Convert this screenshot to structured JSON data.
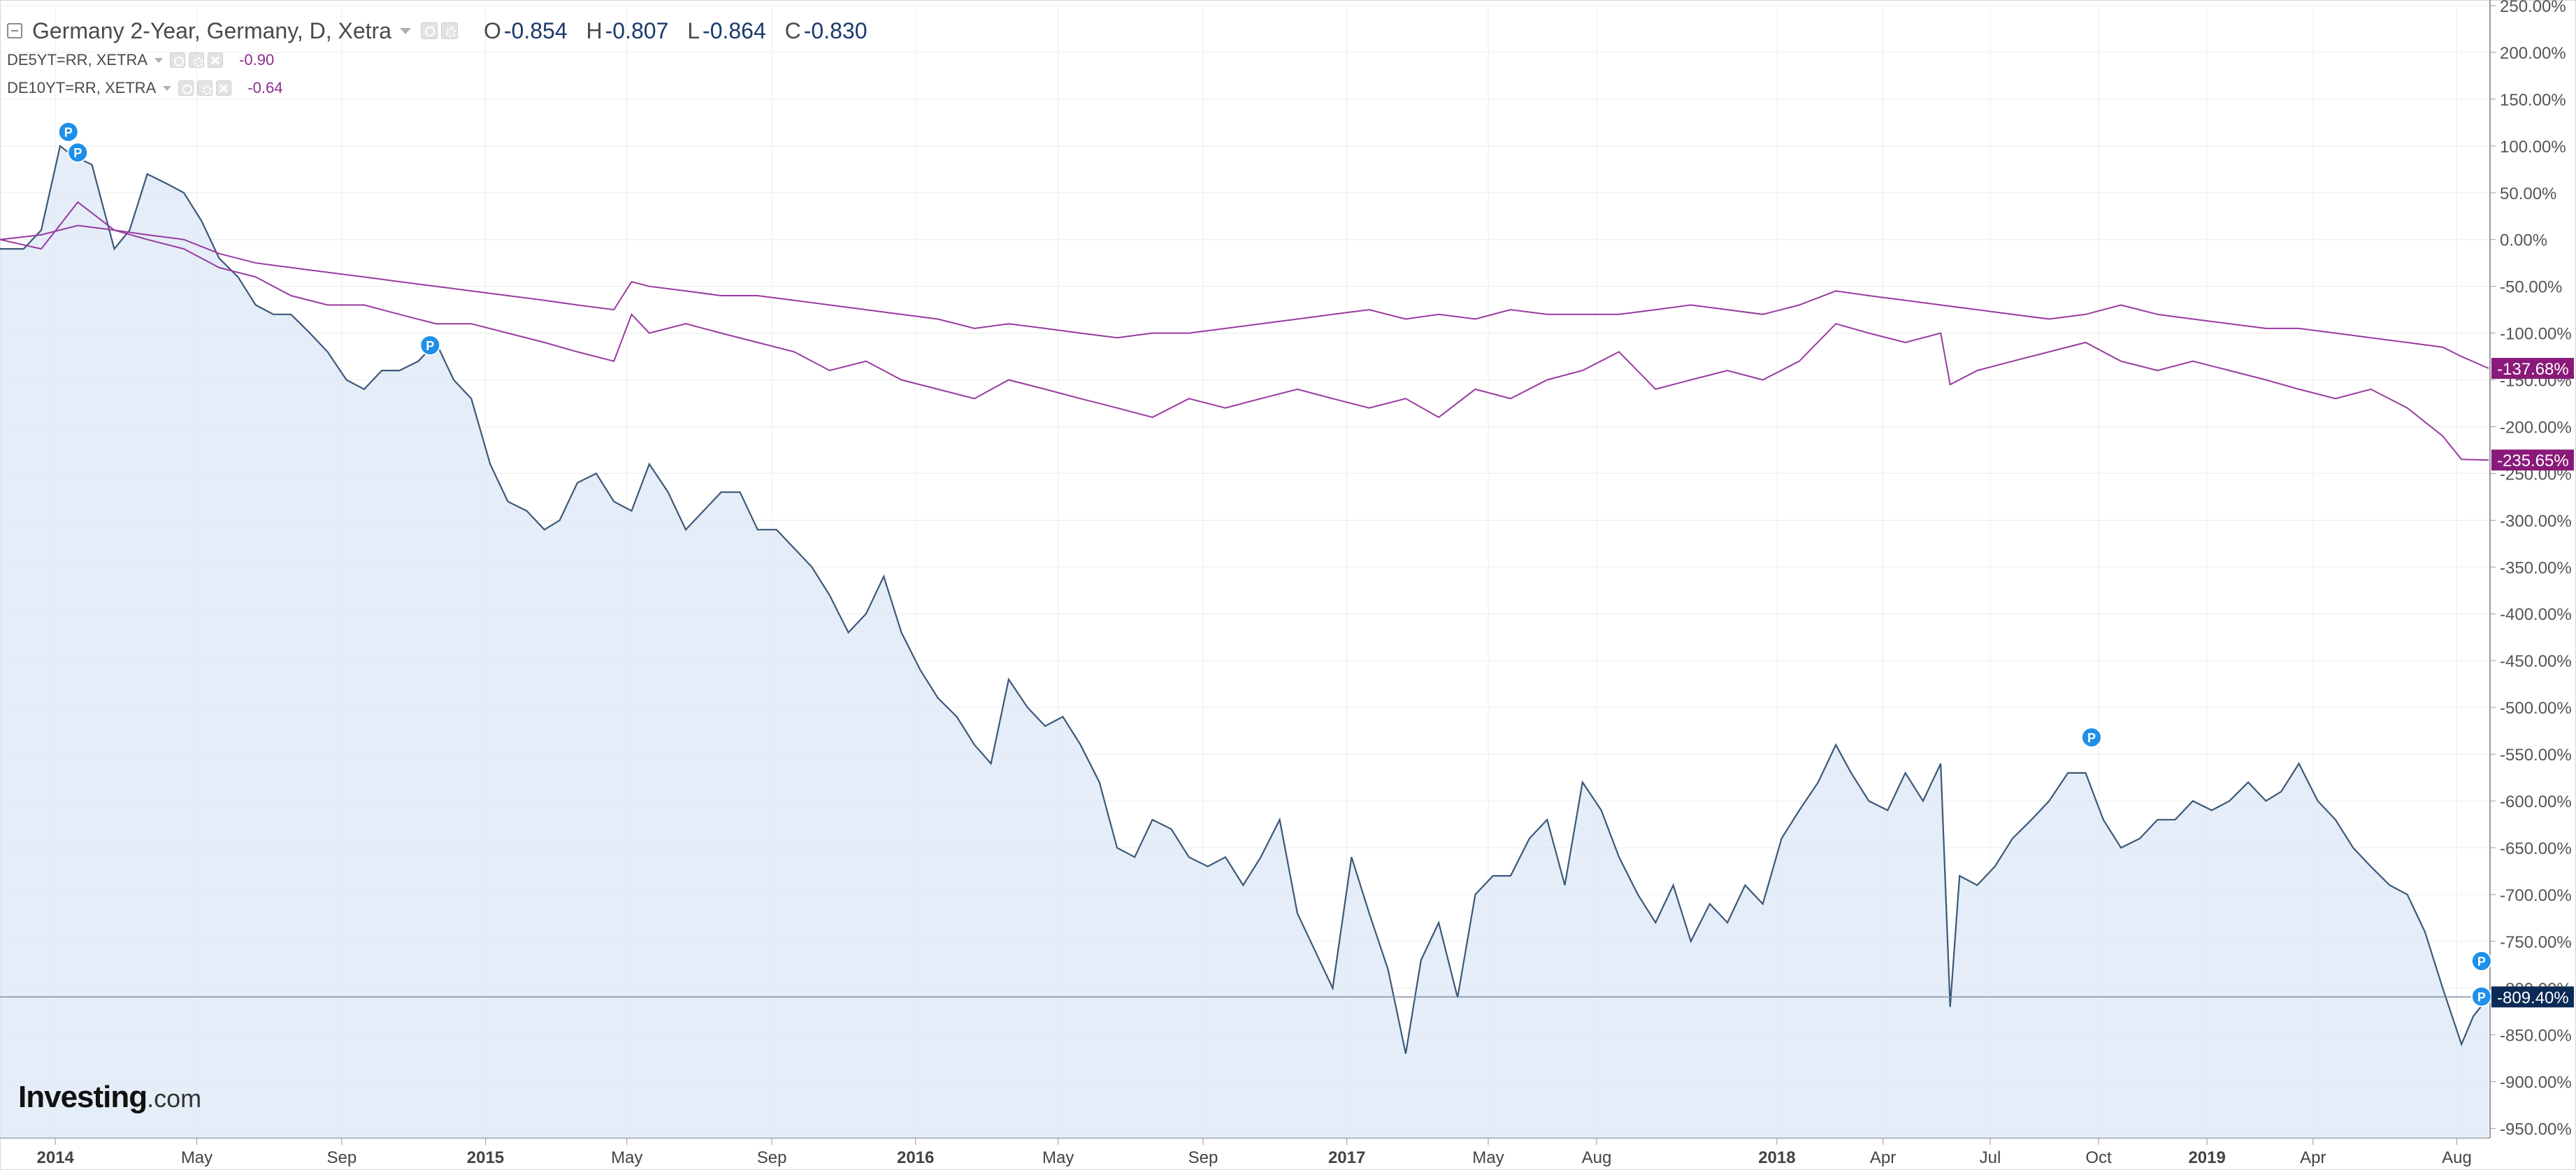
{
  "legend": {
    "main": {
      "title": "Germany 2-Year, Germany, D, Xetra",
      "open_label": "O",
      "open": "-0.854",
      "high_label": "H",
      "high": "-0.807",
      "low_label": "L",
      "low": "-0.864",
      "close_label": "C",
      "close": "-0.830",
      "color": "#1b3a6b"
    },
    "de5": {
      "title": "DE5YT=RR, XETRA",
      "value": "-0.90",
      "color": "#8e2e8e"
    },
    "de10": {
      "title": "DE10YT=RR, XETRA",
      "value": "-0.64",
      "color": "#8e2e8e"
    }
  },
  "brand": {
    "name": "Investing",
    "domain": ".com"
  },
  "colors": {
    "main_line": "#3b5878",
    "main_fill": "#dbe7f5",
    "compare_line": "#9a3aa0",
    "main_badge": "#0b2a55",
    "compare_badge": "#8a1a7a",
    "grid": "#ececec",
    "axis_text": "#555555"
  },
  "chart_data": {
    "type": "area",
    "title": "Germany 2-Year, Germany, D, Xetra",
    "y_unit": "%",
    "ylim": [
      -960,
      250
    ],
    "y_ticks": [
      250,
      200,
      150,
      100,
      50,
      0,
      -50,
      -100,
      -150,
      -200,
      -250,
      -300,
      -350,
      -400,
      -450,
      -500,
      -550,
      -600,
      -650,
      -700,
      -750,
      -800,
      -850,
      -900,
      -950
    ],
    "y_tick_labels": [
      "250.00%",
      "200.00%",
      "150.00%",
      "100.00%",
      "50.00%",
      "0.00%",
      "-50.00%",
      "-100.00%",
      "-150.00%",
      "-200.00%",
      "-250.00%",
      "-300.00%",
      "-350.00%",
      "-400.00%",
      "-450.00%",
      "-500.00%",
      "-550.00%",
      "-600.00%",
      "-650.00%",
      "-700.00%",
      "-750.00%",
      "-800.00%",
      "-850.00%",
      "-900.00%",
      "-950.00%"
    ],
    "x_ticks": [
      {
        "date": "2014-01-01",
        "label": "2014",
        "bold": true
      },
      {
        "date": "2014-05-01",
        "label": "May",
        "bold": false
      },
      {
        "date": "2014-09-01",
        "label": "Sep",
        "bold": false
      },
      {
        "date": "2015-01-01",
        "label": "2015",
        "bold": true
      },
      {
        "date": "2015-05-01",
        "label": "May",
        "bold": false
      },
      {
        "date": "2015-09-01",
        "label": "Sep",
        "bold": false
      },
      {
        "date": "2016-01-01",
        "label": "2016",
        "bold": true
      },
      {
        "date": "2016-05-01",
        "label": "May",
        "bold": false
      },
      {
        "date": "2016-09-01",
        "label": "Sep",
        "bold": false
      },
      {
        "date": "2017-01-01",
        "label": "2017",
        "bold": true
      },
      {
        "date": "2017-05-01",
        "label": "May",
        "bold": false
      },
      {
        "date": "2017-08-01",
        "label": "Aug",
        "bold": false
      },
      {
        "date": "2018-01-01",
        "label": "2018",
        "bold": true
      },
      {
        "date": "2018-04-01",
        "label": "Apr",
        "bold": false
      },
      {
        "date": "2018-07-01",
        "label": "Jul",
        "bold": false
      },
      {
        "date": "2018-10-01",
        "label": "Oct",
        "bold": false
      },
      {
        "date": "2019-01-01",
        "label": "2019",
        "bold": true
      },
      {
        "date": "2019-04-01",
        "label": "Apr",
        "bold": false
      },
      {
        "date": "2019-08-01",
        "label": "Aug",
        "bold": false
      }
    ],
    "xlim": [
      "2013-11-15",
      "2019-08-28"
    ],
    "current_line_value": -809.4,
    "series": [
      {
        "name": "Germany 2-Year, Germany, D, Xetra",
        "style": "area",
        "last_label": "-809.40%",
        "x": [
          "2013-11-15",
          "2013-12-05",
          "2013-12-20",
          "2014-01-05",
          "2014-01-15",
          "2014-02-01",
          "2014-02-20",
          "2014-03-05",
          "2014-03-20",
          "2014-04-05",
          "2014-04-20",
          "2014-05-05",
          "2014-05-20",
          "2014-06-05",
          "2014-06-20",
          "2014-07-05",
          "2014-07-20",
          "2014-08-05",
          "2014-08-20",
          "2014-09-05",
          "2014-09-20",
          "2014-10-05",
          "2014-10-20",
          "2014-11-05",
          "2014-11-20",
          "2014-12-05",
          "2014-12-20",
          "2015-01-05",
          "2015-01-20",
          "2015-02-05",
          "2015-02-20",
          "2015-03-05",
          "2015-03-20",
          "2015-04-05",
          "2015-04-20",
          "2015-05-05",
          "2015-05-20",
          "2015-06-05",
          "2015-06-20",
          "2015-07-05",
          "2015-07-20",
          "2015-08-05",
          "2015-08-20",
          "2015-09-05",
          "2015-09-20",
          "2015-10-05",
          "2015-10-20",
          "2015-11-05",
          "2015-11-20",
          "2015-12-05",
          "2015-12-20",
          "2016-01-05",
          "2016-01-20",
          "2016-02-05",
          "2016-02-20",
          "2016-03-05",
          "2016-03-20",
          "2016-04-05",
          "2016-04-20",
          "2016-05-05",
          "2016-05-20",
          "2016-06-05",
          "2016-06-20",
          "2016-07-05",
          "2016-07-20",
          "2016-08-05",
          "2016-08-20",
          "2016-09-05",
          "2016-09-20",
          "2016-10-05",
          "2016-10-20",
          "2016-11-05",
          "2016-11-20",
          "2016-12-05",
          "2016-12-20",
          "2017-01-05",
          "2017-01-20",
          "2017-02-05",
          "2017-02-20",
          "2017-03-05",
          "2017-03-20",
          "2017-04-05",
          "2017-04-20",
          "2017-05-05",
          "2017-05-20",
          "2017-06-05",
          "2017-06-20",
          "2017-07-05",
          "2017-07-20",
          "2017-08-05",
          "2017-08-20",
          "2017-09-05",
          "2017-09-20",
          "2017-10-05",
          "2017-10-20",
          "2017-11-05",
          "2017-11-20",
          "2017-12-05",
          "2017-12-20",
          "2018-01-05",
          "2018-01-20",
          "2018-02-05",
          "2018-02-20",
          "2018-03-05",
          "2018-03-20",
          "2018-04-05",
          "2018-04-20",
          "2018-05-05",
          "2018-05-20",
          "2018-05-28",
          "2018-06-05",
          "2018-06-20",
          "2018-07-05",
          "2018-07-20",
          "2018-08-05",
          "2018-08-20",
          "2018-09-05",
          "2018-09-20",
          "2018-10-05",
          "2018-10-20",
          "2018-11-05",
          "2018-11-20",
          "2018-12-05",
          "2018-12-20",
          "2019-01-05",
          "2019-01-20",
          "2019-02-05",
          "2019-02-20",
          "2019-03-05",
          "2019-03-20",
          "2019-04-05",
          "2019-04-20",
          "2019-05-05",
          "2019-05-20",
          "2019-06-05",
          "2019-06-20",
          "2019-07-05",
          "2019-07-20",
          "2019-08-05",
          "2019-08-15",
          "2019-08-28"
        ],
        "y": [
          -10,
          -10,
          10,
          100,
          90,
          80,
          -10,
          10,
          70,
          60,
          50,
          20,
          -20,
          -40,
          -70,
          -80,
          -80,
          -100,
          -120,
          -150,
          -160,
          -140,
          -140,
          -130,
          -110,
          -150,
          -170,
          -240,
          -280,
          -290,
          -310,
          -300,
          -260,
          -250,
          -280,
          -290,
          -240,
          -270,
          -310,
          -290,
          -270,
          -270,
          -310,
          -310,
          -330,
          -350,
          -380,
          -420,
          -400,
          -360,
          -420,
          -460,
          -490,
          -510,
          -540,
          -560,
          -470,
          -500,
          -520,
          -510,
          -540,
          -580,
          -650,
          -660,
          -620,
          -630,
          -660,
          -670,
          -660,
          -690,
          -660,
          -620,
          -720,
          -760,
          -800,
          -660,
          -720,
          -780,
          -870,
          -770,
          -730,
          -810,
          -700,
          -680,
          -680,
          -640,
          -620,
          -690,
          -580,
          -610,
          -660,
          -700,
          -730,
          -690,
          -750,
          -710,
          -730,
          -690,
          -710,
          -640,
          -610,
          -580,
          -540,
          -570,
          -600,
          -610,
          -570,
          -600,
          -560,
          -820,
          -680,
          -690,
          -670,
          -640,
          -620,
          -600,
          -570,
          -570,
          -620,
          -650,
          -640,
          -620,
          -620,
          -600,
          -610,
          -600,
          -580,
          -600,
          -590,
          -560,
          -600,
          -620,
          -650,
          -670,
          -690,
          -700,
          -740,
          -800,
          -860,
          -830,
          -809.4
        ]
      },
      {
        "name": "DE5YT=RR, XETRA",
        "style": "line",
        "last_label": "-235.65%",
        "x": [
          "2013-11-15",
          "2013-12-20",
          "2014-01-20",
          "2014-02-20",
          "2014-03-20",
          "2014-04-20",
          "2014-05-20",
          "2014-06-20",
          "2014-07-20",
          "2014-08-20",
          "2014-09-20",
          "2014-10-20",
          "2014-11-20",
          "2014-12-20",
          "2015-01-20",
          "2015-02-20",
          "2015-03-20",
          "2015-04-20",
          "2015-05-05",
          "2015-05-20",
          "2015-06-20",
          "2015-07-20",
          "2015-08-20",
          "2015-09-20",
          "2015-10-20",
          "2015-11-20",
          "2015-12-20",
          "2016-01-20",
          "2016-02-20",
          "2016-03-20",
          "2016-04-20",
          "2016-05-20",
          "2016-06-20",
          "2016-07-20",
          "2016-08-20",
          "2016-09-20",
          "2016-10-20",
          "2016-11-20",
          "2016-12-20",
          "2017-01-20",
          "2017-02-20",
          "2017-03-20",
          "2017-04-20",
          "2017-05-20",
          "2017-06-20",
          "2017-07-20",
          "2017-08-20",
          "2017-09-20",
          "2017-10-20",
          "2017-11-20",
          "2017-12-20",
          "2018-01-20",
          "2018-02-20",
          "2018-03-20",
          "2018-04-20",
          "2018-05-20",
          "2018-05-28",
          "2018-06-20",
          "2018-07-20",
          "2018-08-20",
          "2018-09-20",
          "2018-10-20",
          "2018-11-20",
          "2018-12-20",
          "2019-01-20",
          "2019-02-20",
          "2019-03-20",
          "2019-04-20",
          "2019-05-20",
          "2019-06-20",
          "2019-07-20",
          "2019-08-05",
          "2019-08-28"
        ],
        "y": [
          0,
          -10,
          40,
          10,
          0,
          -10,
          -30,
          -40,
          -60,
          -70,
          -70,
          -80,
          -90,
          -90,
          -100,
          -110,
          -120,
          -130,
          -80,
          -100,
          -90,
          -100,
          -110,
          -120,
          -140,
          -130,
          -150,
          -160,
          -170,
          -150,
          -160,
          -170,
          -180,
          -190,
          -170,
          -180,
          -170,
          -160,
          -170,
          -180,
          -170,
          -190,
          -160,
          -170,
          -150,
          -140,
          -120,
          -160,
          -150,
          -140,
          -150,
          -130,
          -90,
          -100,
          -110,
          -100,
          -155,
          -140,
          -130,
          -120,
          -110,
          -130,
          -140,
          -130,
          -140,
          -150,
          -160,
          -170,
          -160,
          -180,
          -210,
          -235,
          -235.65
        ]
      },
      {
        "name": "DE10YT=RR, XETRA",
        "style": "line",
        "last_label": "-137.68%",
        "x": [
          "2013-11-15",
          "2013-12-20",
          "2014-01-20",
          "2014-02-20",
          "2014-03-20",
          "2014-04-20",
          "2014-05-20",
          "2014-06-20",
          "2014-07-20",
          "2014-08-20",
          "2014-09-20",
          "2014-10-20",
          "2014-11-20",
          "2014-12-20",
          "2015-01-20",
          "2015-02-20",
          "2015-03-20",
          "2015-04-20",
          "2015-05-05",
          "2015-05-20",
          "2015-06-20",
          "2015-07-20",
          "2015-08-20",
          "2015-09-20",
          "2015-10-20",
          "2015-11-20",
          "2015-12-20",
          "2016-01-20",
          "2016-02-20",
          "2016-03-20",
          "2016-04-20",
          "2016-05-20",
          "2016-06-20",
          "2016-07-20",
          "2016-08-20",
          "2016-09-20",
          "2016-10-20",
          "2016-11-20",
          "2016-12-20",
          "2017-01-20",
          "2017-02-20",
          "2017-03-20",
          "2017-04-20",
          "2017-05-20",
          "2017-06-20",
          "2017-07-20",
          "2017-08-20",
          "2017-09-20",
          "2017-10-20",
          "2017-11-20",
          "2017-12-20",
          "2018-01-20",
          "2018-02-20",
          "2018-03-20",
          "2018-04-20",
          "2018-05-20",
          "2018-06-20",
          "2018-07-20",
          "2018-08-20",
          "2018-09-20",
          "2018-10-20",
          "2018-11-20",
          "2018-12-20",
          "2019-01-20",
          "2019-02-20",
          "2019-03-20",
          "2019-04-20",
          "2019-05-20",
          "2019-06-20",
          "2019-07-20",
          "2019-08-05",
          "2019-08-28"
        ],
        "y": [
          0,
          5,
          15,
          10,
          5,
          0,
          -15,
          -25,
          -30,
          -35,
          -40,
          -45,
          -50,
          -55,
          -60,
          -65,
          -70,
          -75,
          -45,
          -50,
          -55,
          -60,
          -60,
          -65,
          -70,
          -75,
          -80,
          -85,
          -95,
          -90,
          -95,
          -100,
          -105,
          -100,
          -100,
          -95,
          -90,
          -85,
          -80,
          -75,
          -85,
          -80,
          -85,
          -75,
          -80,
          -80,
          -80,
          -75,
          -70,
          -75,
          -80,
          -70,
          -55,
          -60,
          -65,
          -70,
          -75,
          -80,
          -85,
          -80,
          -70,
          -80,
          -85,
          -90,
          -95,
          -95,
          -100,
          -105,
          -110,
          -115,
          -125,
          -137.68
        ]
      }
    ],
    "markers": [
      {
        "series": 0,
        "x": "2014-01-12",
        "y": 115,
        "label": "P"
      },
      {
        "series": 0,
        "x": "2014-01-20",
        "y": 93,
        "label": "P"
      },
      {
        "series": 0,
        "x": "2014-11-15",
        "y": -113,
        "label": "P"
      },
      {
        "series": 0,
        "x": "2018-09-25",
        "y": -532,
        "label": "P"
      },
      {
        "series": 0,
        "x": "2019-08-22",
        "y": -771,
        "label": "P"
      },
      {
        "series": 0,
        "x": "2019-08-22",
        "y": -809,
        "label": "P"
      }
    ]
  }
}
